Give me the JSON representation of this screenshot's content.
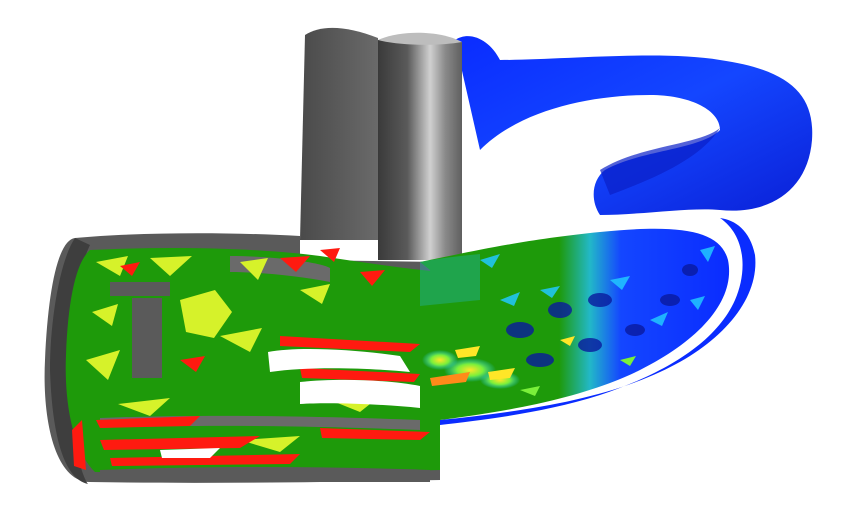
{
  "scene": {
    "background": "#ffffff",
    "colors": {
      "shell_dark": "#4a4a4a",
      "shell_mid": "#6f6f6f",
      "shell_light": "#c8c8c8",
      "mesh_green": "#1e9a0a",
      "mesh_yellow": "#d6f22a",
      "mesh_red": "#ff1a10",
      "mesh_white": "#ffffff",
      "flow_blue_dark": "#0a1fd6",
      "flow_blue": "#1446ff",
      "flow_cyan": "#22c8ff",
      "flow_yellow": "#ffe628",
      "flow_orange": "#ff8a1a"
    }
  }
}
